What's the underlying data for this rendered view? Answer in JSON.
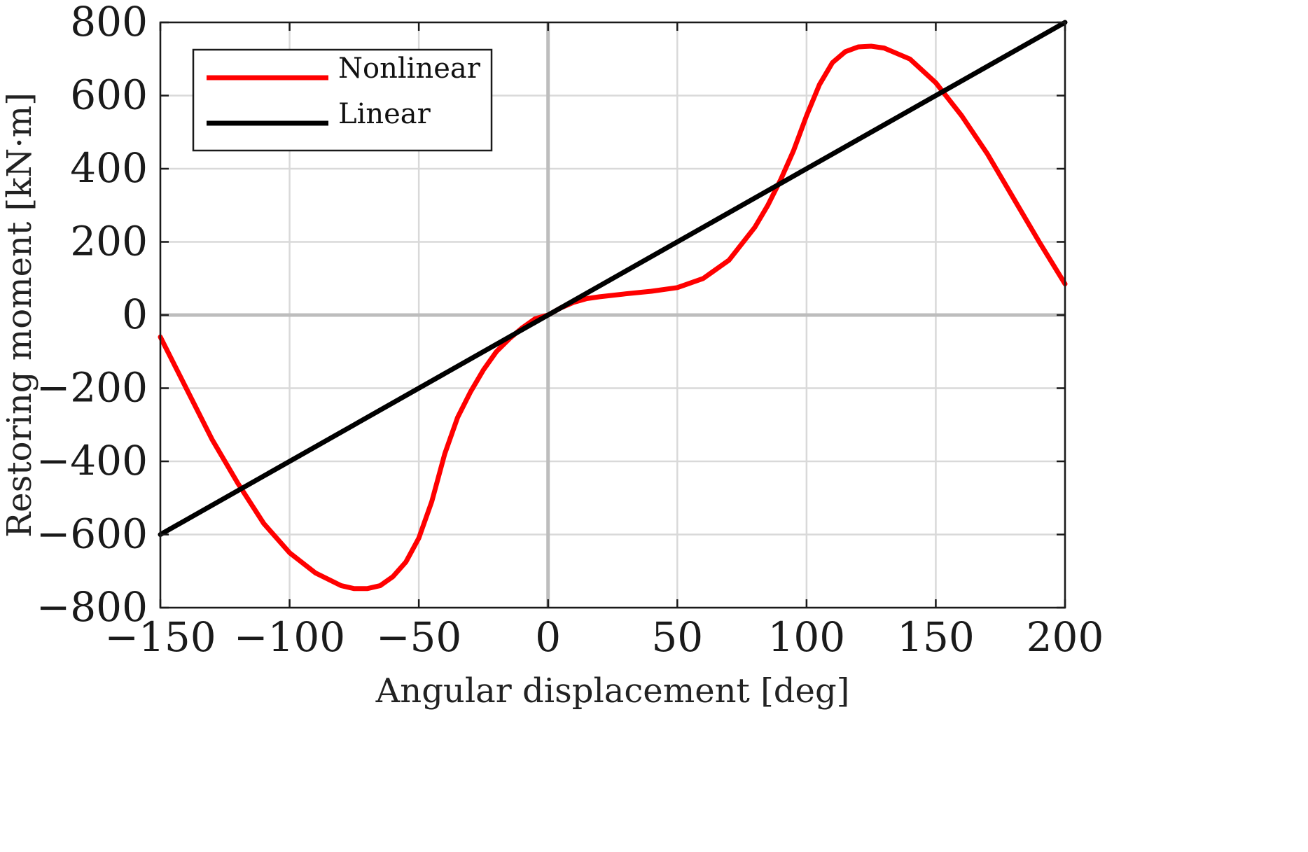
{
  "chart_data": {
    "type": "line",
    "xlabel": "Angular displacement [deg]",
    "ylabel": "Restoring moment [kN·m]",
    "xlim": [
      -150,
      200
    ],
    "ylim": [
      -800,
      800
    ],
    "xticks": [
      -150,
      -100,
      -50,
      0,
      50,
      100,
      150,
      200
    ],
    "yticks": [
      -800,
      -600,
      -400,
      -200,
      0,
      200,
      400,
      600,
      800
    ],
    "xtick_labels": [
      "−150",
      "−100",
      "−50",
      "0",
      "50",
      "100",
      "150",
      "200"
    ],
    "ytick_labels": [
      "−800",
      "−600",
      "−400",
      "−200",
      "0",
      "200",
      "400",
      "600",
      "800"
    ],
    "grid": true,
    "legend_position": "top-left",
    "series": [
      {
        "name": "Nonlinear",
        "color": "#ff0000",
        "x": [
          -150,
          -140,
          -130,
          -120,
          -110,
          -100,
          -90,
          -80,
          -75,
          -70,
          -65,
          -60,
          -55,
          -50,
          -45,
          -40,
          -35,
          -30,
          -25,
          -20,
          -15,
          -10,
          -5,
          0,
          5,
          10,
          15,
          20,
          30,
          40,
          50,
          60,
          70,
          80,
          85,
          90,
          95,
          100,
          105,
          110,
          115,
          120,
          125,
          130,
          140,
          150,
          160,
          170,
          180,
          190,
          200
        ],
        "y": [
          -60,
          -200,
          -340,
          -460,
          -570,
          -650,
          -705,
          -740,
          -748,
          -748,
          -740,
          -715,
          -675,
          -610,
          -510,
          -380,
          -280,
          -210,
          -150,
          -100,
          -65,
          -35,
          -10,
          0,
          20,
          35,
          45,
          50,
          58,
          65,
          75,
          100,
          150,
          240,
          300,
          370,
          450,
          545,
          630,
          690,
          720,
          733,
          735,
          730,
          700,
          635,
          545,
          440,
          320,
          200,
          85
        ]
      },
      {
        "name": "Linear",
        "color": "#000000",
        "x": [
          -150,
          200
        ],
        "y": [
          -600,
          800
        ]
      }
    ]
  }
}
